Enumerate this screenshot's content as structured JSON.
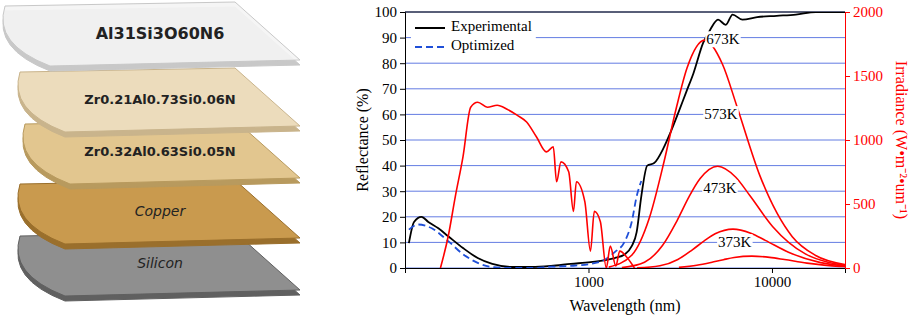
{
  "diagram": {
    "layers": [
      "Al31Si3O60N6",
      "Zr0.21Al0.73Si0.06N",
      "Zr0.32Al0.63Si0.05N",
      "Copper",
      "Silicon"
    ]
  },
  "chart_data": {
    "type": "line",
    "x_label": "Wavelength (nm)",
    "y_label": "Reflectance (%)",
    "y2_label": "Irradiance (W•m⁻²•um⁻¹)",
    "log": "x",
    "xlim": [
      100,
      25000
    ],
    "xticks": [
      1000,
      10000
    ],
    "ylim": [
      0,
      100
    ],
    "yticks": [
      0,
      10,
      20,
      30,
      40,
      50,
      60,
      70,
      80,
      90,
      100
    ],
    "y2lim": [
      0,
      2000
    ],
    "y2ticks": [
      0,
      500,
      1000,
      1500,
      2000
    ],
    "grid": true,
    "legend": "upper left",
    "series": [
      {
        "name": "Experimental",
        "color": "#000000",
        "line_style": "solid",
        "x": [
          105,
          112,
          123,
          134,
          152,
          172,
          207,
          249,
          299,
          383,
          489,
          625,
          800,
          1025,
          1230,
          1390,
          1580,
          1720,
          1830,
          1940,
          2090,
          2280,
          2570,
          2800,
          3100,
          3420,
          3730,
          4220,
          4600,
          5080,
          5600,
          6100,
          6900,
          8300,
          10600,
          13500,
          17300,
          25000
        ],
        "values": [
          9.7,
          18,
          20,
          18,
          15.5,
          12.4,
          7.8,
          3.9,
          1.6,
          0.4,
          0.4,
          0.8,
          1.6,
          2.3,
          3.1,
          3.9,
          5.4,
          8.5,
          14,
          28,
          40,
          41,
          47,
          53,
          61,
          69,
          76,
          88,
          93,
          97,
          95,
          99,
          97,
          98,
          98.5,
          99,
          100,
          100
        ]
      },
      {
        "name": "Optimized",
        "color": "#1f4fd8",
        "line_style": "dashed",
        "x": [
          105,
          118,
          140,
          172,
          207,
          249,
          299,
          383,
          489,
          625,
          800,
          1140,
          1390,
          1580,
          1720,
          1830,
          1940
        ],
        "values": [
          15,
          17,
          15.5,
          10.5,
          5.4,
          2,
          0.4,
          0,
          0,
          0.5,
          0.8,
          2.3,
          6.2,
          10.5,
          18,
          28,
          34
        ]
      },
      {
        "color": "#ff0000",
        "line_style": "solid",
        "axis": "y2",
        "x": [
          156,
          172,
          188,
          207,
          228,
          249,
          281,
          318,
          360,
          408,
          460,
          521,
          590,
          643,
          670,
          708,
          780,
          828,
          859,
          955,
          1025,
          1076,
          1160,
          1250,
          1315,
          1410,
          1480,
          1630,
          1780
        ],
        "values": [
          0,
          248,
          558,
          868,
          1256,
          1295,
          1256,
          1271,
          1240,
          1194,
          1140,
          1023,
          907,
          946,
          674,
          829,
          752,
          442,
          674,
          519,
          132,
          442,
          364,
          0,
          171,
          16,
          132,
          78,
          0
        ]
      },
      {
        "color": "#ff0000",
        "line_style": "solid",
        "axis": "y2",
        "x": [
          1290,
          1720,
          2150,
          2580,
          3010,
          3440,
          4300,
          5380,
          6450,
          8600,
          12900,
          17200,
          25000
        ],
        "values": [
          7,
          100,
          395,
          830,
          1250,
          1560,
          1780,
          1590,
          1260,
          720,
          245,
          100,
          27
        ]
      },
      {
        "color": "#ff0000",
        "line_style": "solid",
        "axis": "y2",
        "x": [
          1520,
          2020,
          2530,
          3040,
          3540,
          4050,
          5060,
          6330,
          7590,
          10100,
          15200,
          20200,
          25000
        ],
        "values": [
          3,
          45,
          176,
          371,
          560,
          697,
          795,
          711,
          564,
          323,
          110,
          45,
          22
        ]
      },
      {
        "color": "#ff0000",
        "line_style": "solid",
        "axis": "y2",
        "x": [
          1840,
          2450,
          3070,
          3680,
          4290,
          4900,
          6130,
          7660,
          9200,
          12300,
          18400,
          25000
        ],
        "values": [
          1,
          17,
          67,
          142,
          214,
          267,
          304,
          272,
          216,
          123,
          42,
          17
        ]
      },
      {
        "color": "#ff0000",
        "line_style": "solid",
        "axis": "y2",
        "x": [
          3110,
          3890,
          4660,
          5440,
          6220,
          7770,
          9710,
          11700,
          15500,
          23300,
          25000
        ],
        "values": [
          5,
          21,
          43,
          65,
          82,
          93,
          83,
          66,
          38,
          13,
          11
        ]
      }
    ],
    "annotations": [
      {
        "text": "673K",
        "x": 5400,
        "y": 1775,
        "axis": "y2"
      },
      {
        "text": "573K",
        "x": 5270,
        "y": 1190,
        "axis": "y2"
      },
      {
        "text": "473K",
        "x": 5200,
        "y": 612,
        "axis": "y2"
      },
      {
        "text": "373K",
        "x": 6270,
        "y": 190,
        "axis": "y2"
      }
    ]
  }
}
